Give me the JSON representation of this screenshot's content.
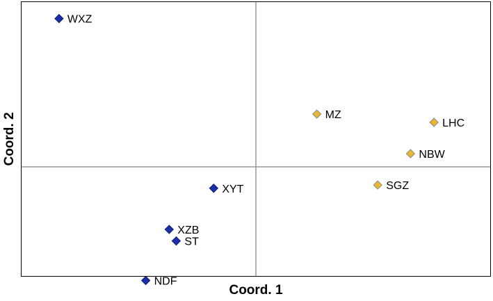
{
  "chart_data": {
    "type": "scatter",
    "title": "",
    "xlabel": "Coord. 1",
    "ylabel": "Coord. 2",
    "xlim": [
      -1,
      1
    ],
    "ylim": [
      -1,
      1
    ],
    "grid": false,
    "zero_lines": true,
    "marker": "diamond",
    "colors": {
      "group1": "#1a2faa",
      "group2": "#e8b830",
      "group1_edge": "#0d1a66",
      "group2_edge": "#8a8a8a"
    },
    "points": [
      {
        "label": "WXZ",
        "x": -0.84,
        "y": 0.9,
        "group": "group1"
      },
      {
        "label": "XYT",
        "x": -0.18,
        "y": -0.13,
        "group": "group1"
      },
      {
        "label": "XZB",
        "x": -0.37,
        "y": -0.38,
        "group": "group1"
      },
      {
        "label": "ST",
        "x": -0.34,
        "y": -0.45,
        "group": "group1"
      },
      {
        "label": "NDF",
        "x": -0.47,
        "y": -0.69,
        "group": "group1"
      },
      {
        "label": "MZ",
        "x": 0.26,
        "y": 0.32,
        "group": "group2"
      },
      {
        "label": "LHC",
        "x": 0.76,
        "y": 0.27,
        "group": "group2"
      },
      {
        "label": "NBW",
        "x": 0.66,
        "y": 0.08,
        "group": "group2"
      },
      {
        "label": "SGZ",
        "x": 0.52,
        "y": -0.11,
        "group": "group2"
      }
    ]
  }
}
